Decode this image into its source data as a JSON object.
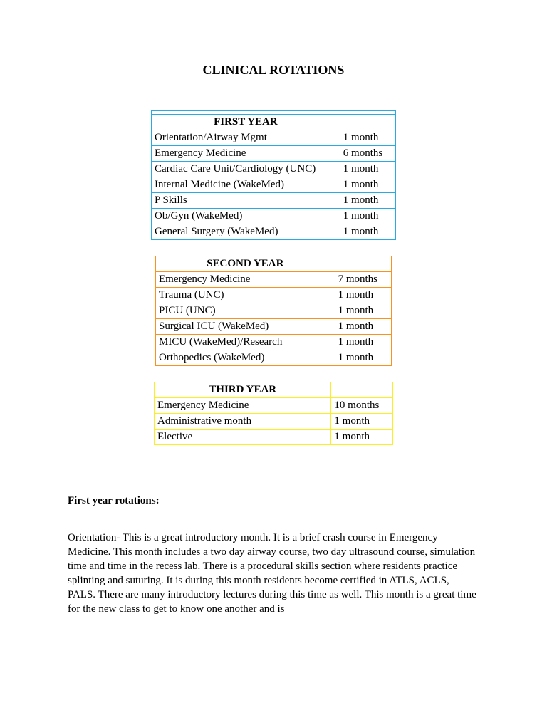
{
  "title": "CLINICAL ROTATIONS",
  "tables": {
    "first": {
      "header": "FIRST YEAR",
      "rows": [
        {
          "label": "Orientation/Airway Mgmt",
          "duration": "1 month"
        },
        {
          "label": "Emergency Medicine",
          "duration": "6 months"
        },
        {
          "label": "Cardiac Care Unit/Cardiology (UNC)",
          "duration": "1 month"
        },
        {
          "label": "Internal Medicine (WakeMed)",
          "duration": "1 month"
        },
        {
          "label": "P Skills",
          "duration": "1 month"
        },
        {
          "label": "Ob/Gyn (WakeMed)",
          "duration": "1 month"
        },
        {
          "label": "General Surgery (WakeMed)",
          "duration": "1 month"
        }
      ],
      "border_color": "#29abe2"
    },
    "second": {
      "header": "SECOND YEAR",
      "rows": [
        {
          "label": "Emergency Medicine",
          "duration": "7 months"
        },
        {
          "label": "Trauma (UNC)",
          "duration": "1 month"
        },
        {
          "label": "PICU (UNC)",
          "duration": "1 month"
        },
        {
          "label": "Surgical ICU (WakeMed)",
          "duration": "1 month"
        },
        {
          "label": "MICU (WakeMed)/Research",
          "duration": "1 month"
        },
        {
          "label": "Orthopedics (WakeMed)",
          "duration": "1 month"
        }
      ],
      "border_color": "#f7931e"
    },
    "third": {
      "header": "THIRD YEAR",
      "rows": [
        {
          "label": "Emergency Medicine",
          "duration": "10 months"
        },
        {
          "label": "Administrative month",
          "duration": "1 month"
        },
        {
          "label": "Elective",
          "duration": "1 month"
        }
      ],
      "border_color": "#fcee21"
    }
  },
  "section_heading": "First year rotations:",
  "body_text": "Orientation- This is a great introductory month. It is a brief crash course in Emergency Medicine. This month includes a two day airway course, two day ultrasound course, simulation time and time in the recess lab.  There is a procedural skills section where residents practice splinting and suturing. It is during this month residents become certified in ATLS, ACLS, PALS. There are many introductory lectures during this time as well. This month is a great time for the new class to get to know one another and is",
  "styling": {
    "page_bg": "#ffffff",
    "font_family": "Times New Roman",
    "title_fontsize": 18,
    "body_fontsize": 15,
    "text_color": "#000000"
  }
}
